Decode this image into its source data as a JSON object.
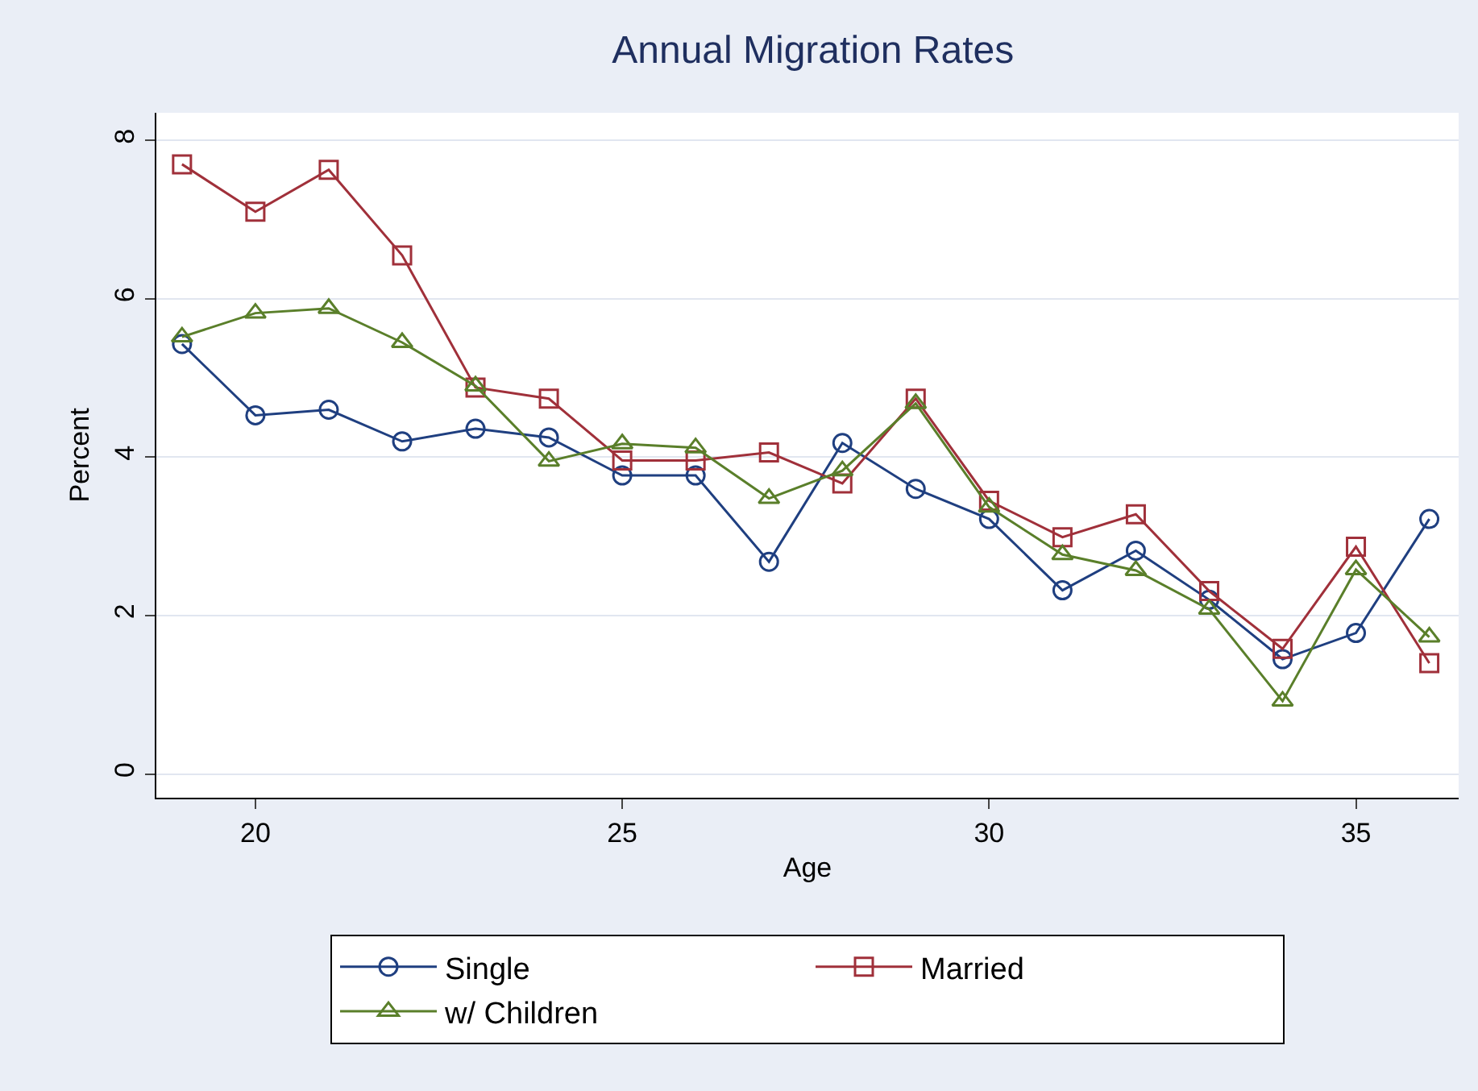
{
  "chart_data": {
    "type": "line",
    "title": "Annual Migration Rates",
    "xlabel": "Age",
    "ylabel": "Percent",
    "x": [
      19,
      20,
      21,
      22,
      23,
      24,
      25,
      26,
      27,
      28,
      29,
      30,
      31,
      32,
      33,
      34,
      35,
      36
    ],
    "series": [
      {
        "name": "Single",
        "color": "#1f3f80",
        "marker": "circle",
        "values": [
          5.43,
          4.53,
          4.6,
          4.2,
          4.36,
          4.25,
          3.77,
          3.77,
          2.68,
          4.18,
          3.6,
          3.22,
          2.32,
          2.82,
          2.2,
          1.45,
          1.78,
          3.22
        ]
      },
      {
        "name": "Married",
        "color": "#a0303a",
        "marker": "square",
        "values": [
          7.7,
          7.1,
          7.63,
          6.55,
          4.88,
          4.74,
          3.96,
          3.96,
          4.06,
          3.67,
          4.74,
          3.45,
          2.99,
          3.28,
          2.31,
          1.58,
          2.87,
          1.4
        ]
      },
      {
        "name": "w/ Children",
        "color": "#5a7f2a",
        "marker": "triangle",
        "values": [
          5.52,
          5.82,
          5.88,
          5.45,
          4.9,
          3.95,
          4.17,
          4.12,
          3.48,
          3.83,
          4.68,
          3.37,
          2.77,
          2.57,
          2.08,
          0.92,
          2.58,
          1.73
        ]
      }
    ],
    "xlim": [
      18.65,
      36.4
    ],
    "xticks": [
      20,
      25,
      30,
      35
    ],
    "ylim": [
      -0.3,
      8.35
    ],
    "yticks": [
      0,
      2,
      4,
      6,
      8
    ],
    "grid": "y",
    "legend": "bottom",
    "line_style": "solid"
  }
}
